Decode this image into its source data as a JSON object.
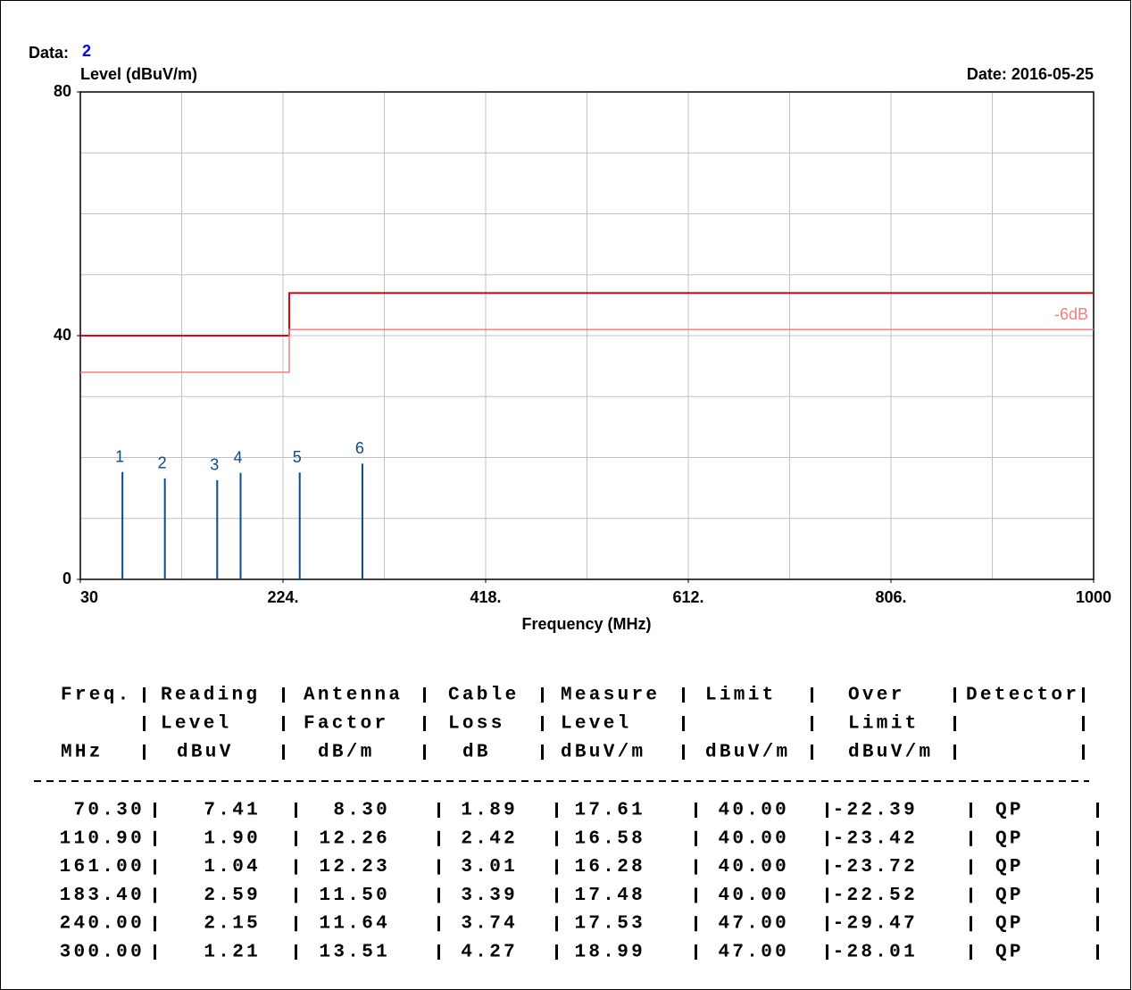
{
  "chart_data": {
    "type": "line",
    "data_label": "Data:",
    "data_number": 2,
    "ylabel": "Level (dBuV/m)",
    "date": "Date: 2016-05-25",
    "xlabel": "Frequency (MHz)",
    "xlim": [
      30,
      1000
    ],
    "xticks": [
      30,
      {
        "value": 224,
        "label": "224."
      },
      {
        "value": 418,
        "label": "418."
      },
      {
        "value": 612,
        "label": "612."
      },
      {
        "value": 806,
        "label": "806."
      },
      1000
    ],
    "xgrid": [
      127,
      224,
      321,
      418,
      515,
      612,
      709,
      806,
      903
    ],
    "ylim": [
      0,
      80
    ],
    "yticks": [
      0,
      40,
      80
    ],
    "ygrid": [
      10,
      20,
      30,
      40,
      50,
      60,
      70
    ],
    "grid": true,
    "series": [
      {
        "color": "#e8000b",
        "x": [
          30,
          230,
          230,
          1000
        ],
        "values": [
          40,
          40,
          47,
          47
        ]
      },
      {
        "name": "-6dB",
        "color": "#f08080",
        "x": [
          30,
          230,
          230,
          1000
        ],
        "values": [
          34,
          34,
          41,
          41
        ]
      }
    ],
    "markers": {
      "color": "#0b4a8c",
      "labels": [
        1,
        2,
        3,
        4,
        5,
        6
      ],
      "x": [
        70.3,
        110.9,
        161.0,
        183.4,
        240.0,
        300.0
      ],
      "values": [
        17.61,
        16.58,
        16.28,
        17.48,
        17.53,
        18.99
      ]
    }
  },
  "table": {
    "columns": [
      {
        "name": [
          "Freq."
        ],
        "unit": "MHz"
      },
      {
        "name": [
          "Reading",
          "Level"
        ],
        "unit": "dBuV"
      },
      {
        "name": [
          "Antenna",
          "Factor"
        ],
        "unit": "dB/m"
      },
      {
        "name": [
          "Cable",
          "Loss"
        ],
        "unit": "dB"
      },
      {
        "name": [
          "Measure",
          "Level"
        ],
        "unit": "dBuV/m"
      },
      {
        "name": [
          "Limit"
        ],
        "unit": "dBuV/m"
      },
      {
        "name": [
          "Over",
          "Limit"
        ],
        "unit": "dBuV/m"
      },
      {
        "name": [
          "Detector"
        ]
      }
    ],
    "rows": [
      [
        "70.30",
        "7.41",
        "8.30",
        "1.89",
        "17.61",
        "40.00",
        "-22.39",
        "QP"
      ],
      [
        "110.90",
        "1.90",
        "12.26",
        "2.42",
        "16.58",
        "40.00",
        "-23.42",
        "QP"
      ],
      [
        "161.00",
        "1.04",
        "12.23",
        "3.01",
        "16.28",
        "40.00",
        "-23.72",
        "QP"
      ],
      [
        "183.40",
        "2.59",
        "11.50",
        "3.39",
        "17.48",
        "40.00",
        "-22.52",
        "QP"
      ],
      [
        "240.00",
        "2.15",
        "11.64",
        "3.74",
        "17.53",
        "47.00",
        "-29.47",
        "QP"
      ],
      [
        "300.00",
        "1.21",
        "13.51",
        "4.27",
        "18.99",
        "47.00",
        "-28.01",
        "QP"
      ]
    ]
  }
}
